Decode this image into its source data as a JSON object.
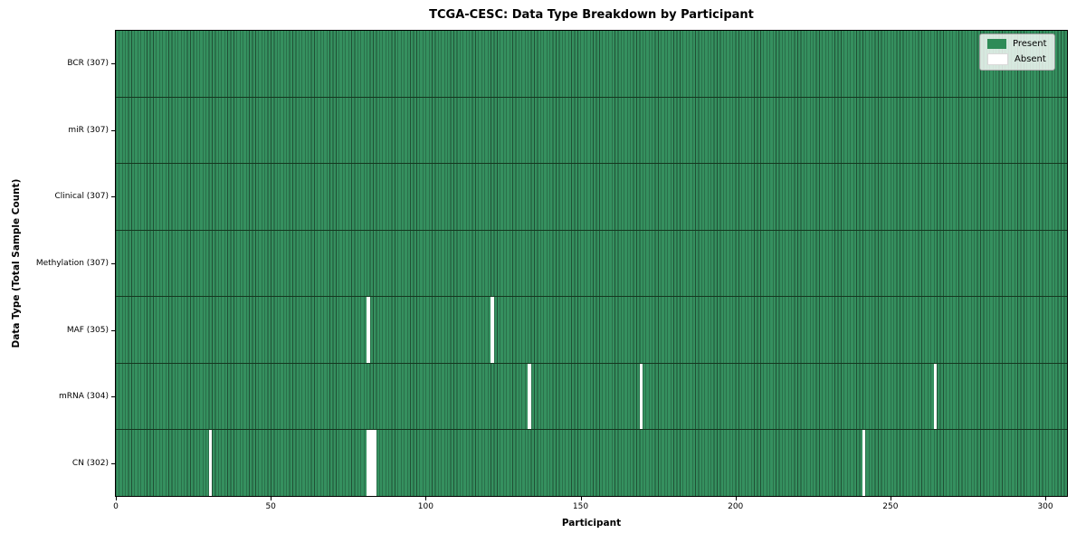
{
  "title": "TCGA-CESC: Data Type Breakdown by Participant",
  "xlabel": "Participant",
  "ylabel": "Data Type (Total Sample Count)",
  "legend": [
    {
      "label": "Present",
      "color": "#2e8b57"
    },
    {
      "label": "Absent",
      "color": "#ffffff"
    }
  ],
  "chart_data": {
    "type": "heatmap",
    "title": "TCGA-CESC: Data Type Breakdown by Participant",
    "xlabel": "Participant",
    "ylabel": "Data Type (Total Sample Count)",
    "total_participants": 307,
    "xlim": [
      0,
      307
    ],
    "x_ticks": [
      0,
      50,
      100,
      150,
      200,
      250,
      300
    ],
    "legend_position": "upper right",
    "rows": [
      {
        "name": "BCR",
        "label": "BCR (307)",
        "present_count": 307,
        "absent_participants": []
      },
      {
        "name": "miR",
        "label": "miR (307)",
        "present_count": 307,
        "absent_participants": []
      },
      {
        "name": "Clinical",
        "label": "Clinical (307)",
        "present_count": 307,
        "absent_participants": []
      },
      {
        "name": "Methylation",
        "label": "Methylation (307)",
        "present_count": 307,
        "absent_participants": []
      },
      {
        "name": "MAF",
        "label": "MAF (305)",
        "present_count": 305,
        "absent_participants": [
          81,
          121
        ]
      },
      {
        "name": "mRNA",
        "label": "mRNA (304)",
        "present_count": 304,
        "absent_participants": [
          133,
          169,
          264
        ]
      },
      {
        "name": "CN",
        "label": "CN (302)",
        "present_count": 302,
        "absent_participants": [
          30,
          81,
          82,
          83,
          241
        ]
      }
    ],
    "colors": {
      "present_fill": "#35905f",
      "cell_edge": "#205035",
      "absent_fill": "#ffffff",
      "legend_present": "#2e8b57"
    }
  }
}
